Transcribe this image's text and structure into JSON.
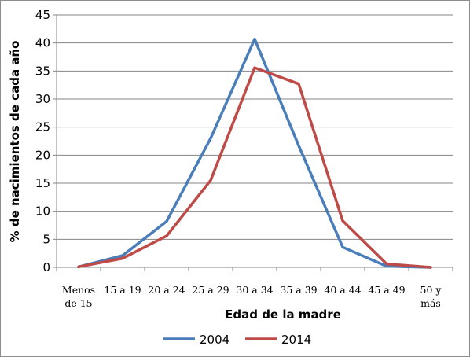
{
  "chart_data": {
    "type": "line",
    "title": "",
    "xlabel": "Edad de la madre",
    "ylabel": "% de nacimientos de cada año",
    "ylim": [
      0,
      45
    ],
    "yticks": [
      0,
      5,
      10,
      15,
      20,
      25,
      30,
      35,
      40,
      45
    ],
    "categories": [
      [
        "Menos",
        "de 15"
      ],
      [
        "15 a 19"
      ],
      [
        "20 a 24"
      ],
      [
        "25 a 29"
      ],
      [
        "30 a 34"
      ],
      [
        "35 a 39"
      ],
      [
        "40 a 44"
      ],
      [
        "45 a 49"
      ],
      [
        "50 y",
        "más"
      ]
    ],
    "grid": "horizontal",
    "legend_position": "bottom",
    "series": [
      {
        "name": "2004",
        "color": "#4a7ebb",
        "values": [
          0.1,
          2.1,
          8.2,
          23.0,
          40.7,
          21.7,
          3.6,
          0.2,
          0.0
        ]
      },
      {
        "name": "2014",
        "color": "#be4b48",
        "values": [
          0.1,
          1.6,
          5.6,
          15.5,
          35.6,
          32.7,
          8.3,
          0.6,
          0.0
        ]
      }
    ]
  }
}
